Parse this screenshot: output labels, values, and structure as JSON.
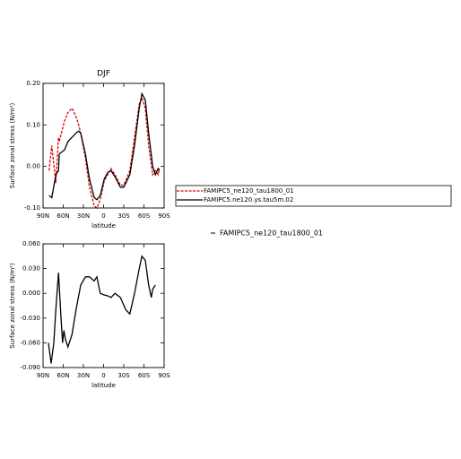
{
  "chart_data": [
    {
      "type": "line",
      "title": "DJF",
      "x_label": "latitude",
      "y_label": "Surface zonal stress (N/m²)",
      "xlim": [
        90,
        -90
      ],
      "ylim": [
        -0.1,
        0.2
      ],
      "xticks": [
        {
          "value": 90,
          "label": "90N"
        },
        {
          "value": 60,
          "label": "60N"
        },
        {
          "value": 30,
          "label": "30N"
        },
        0,
        {
          "value": -30,
          "label": "30S"
        },
        {
          "value": -60,
          "label": "60S"
        },
        {
          "value": -90,
          "label": "90S"
        }
      ],
      "yticks": [
        {
          "value": -0.1,
          "label": "-0.10"
        },
        {
          "value": 0,
          "label": "0.00"
        },
        {
          "value": 0.1,
          "label": "0.10"
        },
        {
          "value": 0.2,
          "label": "0.20"
        }
      ],
      "x": [
        81,
        77,
        71,
        67,
        66,
        58,
        53,
        47,
        41,
        37,
        34,
        27,
        21,
        14,
        10,
        5,
        -1,
        -6,
        -11,
        -17,
        -25,
        -30,
        -39,
        -46,
        -53,
        -57,
        -62,
        -67,
        -73,
        -77,
        -81,
        -83
      ],
      "series": [
        {
          "name": "FAMIPC5_ne120_tau1800_01",
          "color": "#e00000",
          "dash": true,
          "values": [
            -0.01,
            0.05,
            -0.04,
            0.07,
            0.06,
            0.11,
            0.13,
            0.14,
            0.12,
            0.1,
            0.08,
            0.02,
            -0.05,
            -0.095,
            -0.1,
            -0.08,
            -0.035,
            -0.02,
            -0.005,
            -0.02,
            -0.045,
            -0.045,
            -0.01,
            0.07,
            0.15,
            0.165,
            0.14,
            0.05,
            -0.02,
            -0.01,
            -0.02,
            -0.005
          ]
        },
        {
          "name": "FAMIPC5.ne120.ys.tau5m.02",
          "color": "#000000",
          "dash": false,
          "values": [
            -0.07,
            -0.075,
            -0.02,
            -0.01,
            0.03,
            0.04,
            0.06,
            0.07,
            0.08,
            0.085,
            0.08,
            0.03,
            -0.03,
            -0.075,
            -0.08,
            -0.07,
            -0.03,
            -0.015,
            -0.01,
            -0.025,
            -0.05,
            -0.05,
            -0.02,
            0.05,
            0.14,
            0.175,
            0.16,
            0.08,
            0.0,
            -0.02,
            -0.005,
            -0.01
          ]
        }
      ]
    },
    {
      "type": "line",
      "x_label": "latitude",
      "y_label": "Surface zonal stress (N/m²)",
      "xlim": [
        90,
        -90
      ],
      "ylim": [
        -0.09,
        0.06
      ],
      "xticks": [
        {
          "value": 90,
          "label": "90N"
        },
        {
          "value": 60,
          "label": "60N"
        },
        {
          "value": 30,
          "label": "30N"
        },
        0,
        {
          "value": -30,
          "label": "30S"
        },
        {
          "value": -60,
          "label": "60S"
        },
        {
          "value": -90,
          "label": "90S"
        }
      ],
      "yticks": [
        {
          "value": -0.09,
          "label": "-0.090"
        },
        {
          "value": -0.06,
          "label": "-0.060"
        },
        {
          "value": -0.03,
          "label": "-0.030"
        },
        {
          "value": 0,
          "label": "0.000"
        },
        {
          "value": 0.03,
          "label": "0.030"
        },
        {
          "value": 0.06,
          "label": "0.060"
        }
      ],
      "x": [
        82,
        78,
        74,
        71,
        67,
        64,
        61,
        59,
        57,
        53,
        47,
        41,
        34,
        27,
        21,
        14,
        10,
        5,
        -1,
        -6,
        -11,
        -17,
        -25,
        -33,
        -39,
        -46,
        -53,
        -57,
        -62,
        -67,
        -71,
        -73,
        -77
      ],
      "series": [
        {
          "name": "FAMIPC5_ne120_tau1800_01",
          "color": "#000000",
          "dash": false,
          "values": [
            -0.06,
            -0.085,
            -0.06,
            -0.02,
            0.025,
            -0.02,
            -0.06,
            -0.045,
            -0.055,
            -0.065,
            -0.05,
            -0.02,
            0.01,
            0.02,
            0.02,
            0.015,
            0.02,
            0.0,
            -0.002,
            -0.003,
            -0.005,
            0.0,
            -0.005,
            -0.02,
            -0.025,
            0.0,
            0.03,
            0.045,
            0.04,
            0.01,
            -0.005,
            0.005,
            0.01
          ]
        }
      ]
    }
  ]
}
